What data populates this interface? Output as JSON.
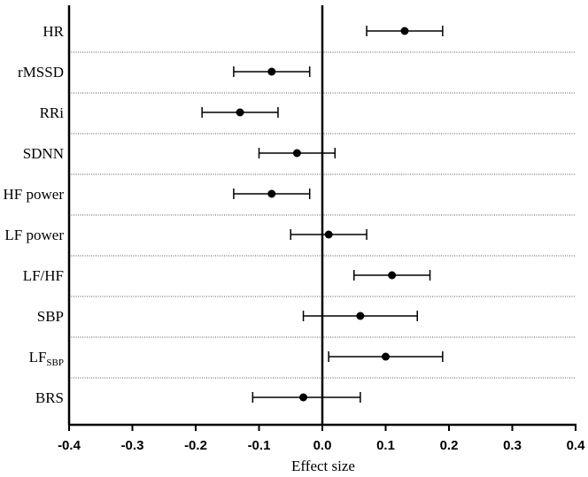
{
  "chart_data": {
    "type": "scatter",
    "subtype": "forest-plot",
    "title": "",
    "xlabel": "Effect size",
    "xlim": [
      -0.4,
      0.4
    ],
    "xticks": [
      "-0.4",
      "-0.3",
      "-0.2",
      "-0.1",
      "0.0",
      "0.1",
      "0.2",
      "0.3",
      "0.4"
    ],
    "reference_line": 0,
    "separators": "dotted",
    "rows": [
      {
        "label": "HR",
        "estimate": 0.13,
        "lower": 0.07,
        "upper": 0.19
      },
      {
        "label": "rMSSD",
        "estimate": -0.08,
        "lower": -0.14,
        "upper": -0.02
      },
      {
        "label": "RRi",
        "estimate": -0.13,
        "lower": -0.19,
        "upper": -0.07
      },
      {
        "label": "SDNN",
        "estimate": -0.04,
        "lower": -0.1,
        "upper": 0.02
      },
      {
        "label": "HF power",
        "estimate": -0.08,
        "lower": -0.14,
        "upper": -0.02
      },
      {
        "label": "LF power",
        "estimate": 0.01,
        "lower": -0.05,
        "upper": 0.07
      },
      {
        "label": "LF/HF",
        "estimate": 0.11,
        "lower": 0.05,
        "upper": 0.17
      },
      {
        "label": "SBP",
        "estimate": 0.06,
        "lower": -0.03,
        "upper": 0.15
      },
      {
        "label": "LF",
        "label_sub": "SBP",
        "estimate": 0.1,
        "lower": 0.01,
        "upper": 0.19
      },
      {
        "label": "BRS",
        "estimate": -0.03,
        "lower": -0.11,
        "upper": 0.06
      }
    ]
  }
}
